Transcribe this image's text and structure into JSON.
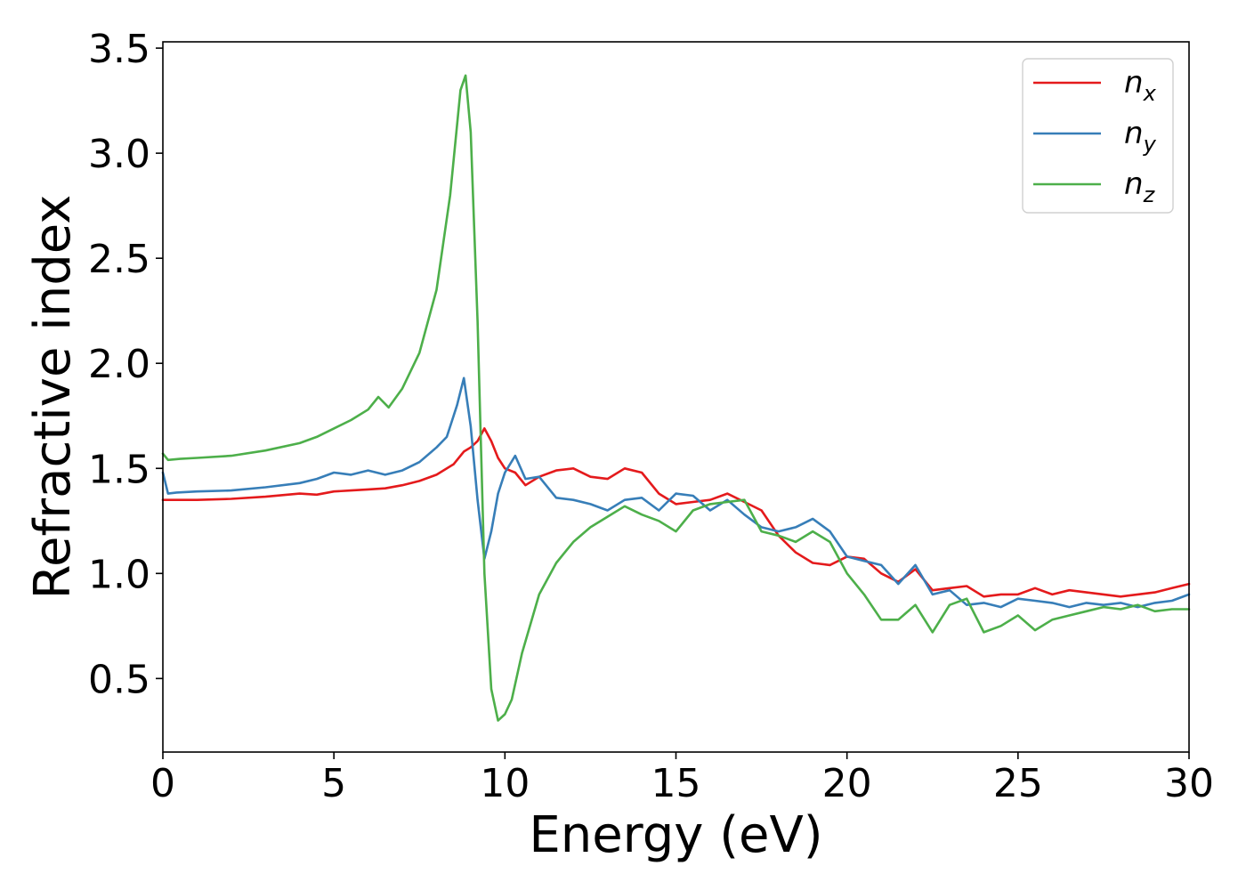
{
  "chart_data": {
    "type": "line",
    "title": "",
    "xlabel": "Energy (eV)",
    "ylabel": "Refractive index",
    "xlim": [
      0,
      30
    ],
    "ylim": [
      0.15,
      3.53
    ],
    "xticks": [
      0,
      5,
      10,
      15,
      20,
      25,
      30
    ],
    "xtick_labels": [
      "0",
      "5",
      "10",
      "15",
      "20",
      "25",
      "30"
    ],
    "yticks": [
      0.5,
      1.0,
      1.5,
      2.0,
      2.5,
      3.0,
      3.5
    ],
    "ytick_labels": [
      "0.5",
      "1.0",
      "1.5",
      "2.0",
      "2.5",
      "3.0",
      "3.5"
    ],
    "grid": false,
    "legend": "top-right",
    "series": [
      {
        "name": "n_x",
        "label_base": "n",
        "label_sub": "x",
        "color": "#e41a1c",
        "x": [
          0,
          1,
          2,
          3,
          4,
          4.5,
          5,
          5.5,
          6,
          6.5,
          7,
          7.5,
          8,
          8.5,
          8.8,
          9.0,
          9.2,
          9.4,
          9.6,
          9.8,
          10.0,
          10.3,
          10.6,
          11.0,
          11.5,
          12.0,
          12.5,
          13.0,
          13.5,
          14.0,
          14.5,
          15.0,
          15.5,
          16.0,
          16.5,
          17.0,
          17.5,
          18.0,
          18.5,
          19.0,
          19.5,
          20.0,
          20.5,
          21.0,
          21.5,
          22.0,
          22.5,
          23.0,
          23.5,
          24.0,
          24.5,
          25.0,
          25.5,
          26.0,
          26.5,
          27.0,
          27.5,
          28.0,
          28.5,
          29.0,
          29.5,
          30.0
        ],
        "y": [
          1.35,
          1.35,
          1.355,
          1.365,
          1.38,
          1.375,
          1.39,
          1.395,
          1.4,
          1.405,
          1.42,
          1.44,
          1.47,
          1.52,
          1.58,
          1.6,
          1.63,
          1.69,
          1.63,
          1.55,
          1.5,
          1.48,
          1.42,
          1.46,
          1.49,
          1.5,
          1.46,
          1.45,
          1.5,
          1.48,
          1.38,
          1.33,
          1.34,
          1.35,
          1.38,
          1.34,
          1.3,
          1.18,
          1.1,
          1.05,
          1.04,
          1.08,
          1.07,
          1.0,
          0.96,
          1.02,
          0.92,
          0.93,
          0.94,
          0.89,
          0.9,
          0.9,
          0.93,
          0.9,
          0.92,
          0.91,
          0.9,
          0.89,
          0.9,
          0.91,
          0.93,
          0.95
        ]
      },
      {
        "name": "n_y",
        "label_base": "n",
        "label_sub": "y",
        "color": "#377eb8",
        "x": [
          0,
          0.15,
          0.4,
          1,
          2,
          3,
          4,
          4.5,
          5,
          5.5,
          6,
          6.5,
          7,
          7.5,
          8,
          8.3,
          8.6,
          8.8,
          9.0,
          9.2,
          9.4,
          9.6,
          9.8,
          10.0,
          10.3,
          10.6,
          11.0,
          11.5,
          12.0,
          12.5,
          13.0,
          13.5,
          14.0,
          14.5,
          15.0,
          15.5,
          16.0,
          16.5,
          17.0,
          17.5,
          18.0,
          18.5,
          19.0,
          19.5,
          20.0,
          20.5,
          21.0,
          21.5,
          22.0,
          22.5,
          23.0,
          23.5,
          24.0,
          24.5,
          25.0,
          25.5,
          26.0,
          26.5,
          27.0,
          27.5,
          28.0,
          28.5,
          29.0,
          29.5,
          30.0
        ],
        "y": [
          1.48,
          1.38,
          1.385,
          1.39,
          1.395,
          1.41,
          1.43,
          1.45,
          1.48,
          1.47,
          1.49,
          1.47,
          1.49,
          1.53,
          1.6,
          1.65,
          1.8,
          1.93,
          1.7,
          1.35,
          1.07,
          1.2,
          1.38,
          1.48,
          1.56,
          1.45,
          1.46,
          1.36,
          1.35,
          1.33,
          1.3,
          1.35,
          1.36,
          1.3,
          1.38,
          1.37,
          1.3,
          1.35,
          1.28,
          1.22,
          1.2,
          1.22,
          1.26,
          1.2,
          1.08,
          1.06,
          1.04,
          0.95,
          1.04,
          0.9,
          0.92,
          0.85,
          0.86,
          0.84,
          0.88,
          0.87,
          0.86,
          0.84,
          0.86,
          0.85,
          0.86,
          0.84,
          0.86,
          0.87,
          0.9
        ]
      },
      {
        "name": "n_z",
        "label_base": "n",
        "label_sub": "z",
        "color": "#4daf4a",
        "x": [
          0,
          0.15,
          0.5,
          1,
          2,
          3,
          4,
          4.5,
          5,
          5.5,
          6,
          6.3,
          6.6,
          7,
          7.5,
          8,
          8.4,
          8.7,
          8.85,
          9.0,
          9.2,
          9.4,
          9.6,
          9.8,
          10.0,
          10.2,
          10.5,
          11.0,
          11.5,
          12.0,
          12.5,
          13.0,
          13.5,
          14.0,
          14.5,
          15.0,
          15.5,
          16.0,
          16.5,
          17.0,
          17.5,
          18.0,
          18.5,
          19.0,
          19.5,
          20.0,
          20.5,
          21.0,
          21.5,
          22.0,
          22.5,
          23.0,
          23.5,
          24.0,
          24.5,
          25.0,
          25.5,
          26.0,
          26.5,
          27.0,
          27.5,
          28.0,
          28.5,
          29.0,
          29.5,
          30.0
        ],
        "y": [
          1.57,
          1.54,
          1.545,
          1.55,
          1.56,
          1.585,
          1.62,
          1.65,
          1.69,
          1.73,
          1.78,
          1.84,
          1.79,
          1.88,
          2.05,
          2.35,
          2.8,
          3.3,
          3.37,
          3.1,
          2.2,
          1.0,
          0.45,
          0.3,
          0.33,
          0.4,
          0.62,
          0.9,
          1.05,
          1.15,
          1.22,
          1.27,
          1.32,
          1.28,
          1.25,
          1.2,
          1.3,
          1.33,
          1.34,
          1.35,
          1.2,
          1.18,
          1.15,
          1.2,
          1.15,
          1.0,
          0.9,
          0.78,
          0.78,
          0.85,
          0.72,
          0.85,
          0.88,
          0.72,
          0.75,
          0.8,
          0.73,
          0.78,
          0.8,
          0.82,
          0.84,
          0.83,
          0.85,
          0.82,
          0.83,
          0.83
        ]
      }
    ]
  }
}
